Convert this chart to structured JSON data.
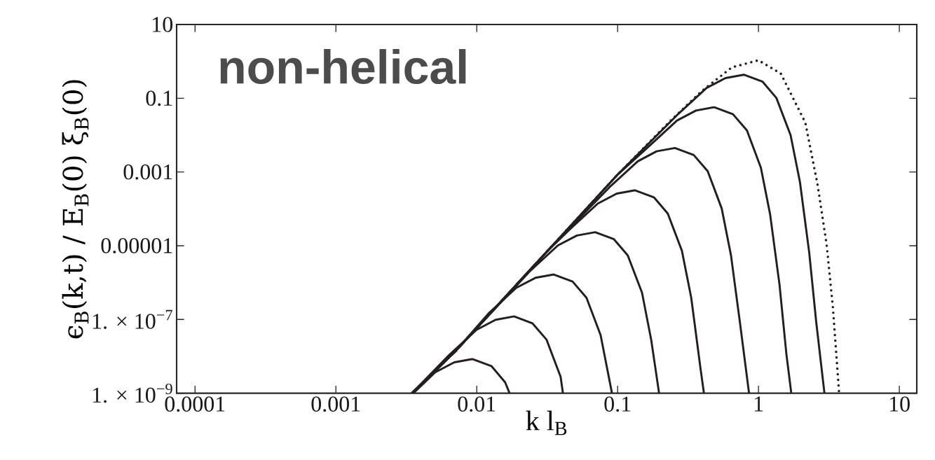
{
  "chart_data": {
    "type": "line",
    "log": "xy",
    "xlabel": "k l$_{B}$",
    "ylabel": "ϵ$_{B}$(k,t) / E$_{B}$(0) ξ$_{B}$(0)",
    "annotations": [
      "**non-helical**"
    ],
    "xlim": [
      7.4e-05,
      13.3
    ],
    "ylim": [
      1e-09,
      10
    ],
    "xticks": [
      {
        "value": 0.0001,
        "label": "0.0001"
      },
      {
        "value": 0.001,
        "label": "0.001"
      },
      {
        "value": 0.01,
        "label": "0.01"
      },
      {
        "value": 0.1,
        "label": "0.1"
      },
      1,
      10
    ],
    "yticks": [
      {
        "value": 1e-09,
        "label": "1. × 10$^{−9}$"
      },
      {
        "value": 1e-07,
        "label": "1. × 10$^{−7}$"
      },
      {
        "value": 1e-05,
        "label": "0.00001"
      },
      {
        "value": 0.001,
        "label": "0.001"
      },
      {
        "value": 0.1,
        "label": "0.1"
      },
      10
    ],
    "series": [
      {
        "color": "#231f20",
        "x": [
          0.00347,
          0.0071,
          0.1,
          0.27,
          0.428,
          0.583,
          0.787,
          1.07,
          1.34,
          1.69,
          1.97,
          2.29,
          2.57,
          2.94
        ],
        "values": [
          1e-09,
          1.41e-08,
          0.00085,
          0.0378,
          0.19,
          0.353,
          0.435,
          0.281,
          0.102,
          0.00996,
          0.000535,
          6.7e-06,
          8.5e-08,
          1e-09
        ]
      },
      {
        "color": "#231f20",
        "x": [
          0.00347,
          0.0071,
          0.1,
          0.167,
          0.264,
          0.36,
          0.485,
          0.659,
          0.828,
          1.04,
          1.21,
          1.41,
          1.58,
          1.71
        ],
        "values": [
          1e-09,
          1.41e-08,
          0.00085,
          0.00498,
          0.0249,
          0.0465,
          0.0571,
          0.0369,
          0.0134,
          0.00131,
          7.03e-05,
          8.85e-07,
          1.11e-08,
          1e-09
        ]
      },
      {
        "color": "#231f20",
        "x": [
          0.00347,
          0.0071,
          0.0316,
          0.0877,
          0.139,
          0.189,
          0.255,
          0.347,
          0.436,
          0.548,
          0.638,
          0.743,
          0.857
        ],
        "values": [
          1e-09,
          1.41e-08,
          7.08e-06,
          0.00039,
          0.00195,
          0.00364,
          0.00448,
          0.00289,
          0.00105,
          0.000103,
          5.51e-06,
          6.93e-08,
          1e-09
        ]
      },
      {
        "color": "#231f20",
        "x": [
          0.00347,
          0.0071,
          0.0316,
          0.0457,
          0.0723,
          0.0986,
          0.133,
          0.181,
          0.227,
          0.286,
          0.333,
          0.387,
          0.41
        ],
        "values": [
          1e-09,
          1.41e-08,
          7.08e-06,
          2.78e-05,
          0.000139,
          0.000259,
          0.000319,
          0.000206,
          7.48e-05,
          7.31e-06,
          3.93e-07,
          4.94e-09,
          1e-09
        ]
      },
      {
        "color": "#231f20",
        "x": [
          0.00347,
          0.0071,
          0.0238,
          0.0377,
          0.0514,
          0.0693,
          0.0942,
          0.118,
          0.149,
          0.173,
          0.197
        ],
        "values": [
          1e-09,
          1.41e-08,
          2.03e-06,
          1.02e-05,
          1.89e-05,
          2.33e-05,
          1.5e-05,
          5.46e-06,
          5.33e-07,
          2.86e-08,
          1e-09
        ]
      },
      {
        "color": "#231f20",
        "x": [
          0.00347,
          0.0071,
          0.0121,
          0.0191,
          0.0261,
          0.0352,
          0.0479,
          0.0601,
          0.0757,
          0.0912
        ],
        "values": [
          1e-09,
          1.41e-08,
          1.44e-07,
          7.23e-07,
          1.35e-06,
          1.66e-06,
          1.07e-06,
          3.88e-07,
          3.79e-08,
          1e-09
        ]
      },
      {
        "color": "#231f20",
        "x": [
          0.00347,
          0.00631,
          0.00998,
          0.0136,
          0.0184,
          0.0249,
          0.0313,
          0.0394,
          0.0409
        ],
        "values": [
          1e-09,
          1.05e-08,
          5.27e-08,
          9.82e-08,
          1.21e-07,
          7.8e-08,
          2.83e-08,
          2.77e-09,
          1e-09
        ]
      },
      {
        "color": "#231f20",
        "x": [
          0.00355,
          0.00507,
          0.00692,
          0.00933,
          0.0127,
          0.0159,
          0.0171
        ],
        "values": [
          1e-09,
          3.69e-09,
          6.87e-09,
          8.45e-09,
          5.46e-09,
          1.98e-09,
          1e-09
        ]
      },
      {
        "color": "#231f20",
        "line_style": "dotted",
        "x": [
          0.00347,
          0.0071,
          0.0316,
          0.1,
          0.236,
          0.391,
          0.646,
          1.0,
          1.44,
          2.15,
          2.62,
          3.05,
          3.37,
          3.73
        ],
        "values": [
          1e-09,
          1.41e-08,
          7.08e-06,
          0.00085,
          0.024,
          0.15,
          0.687,
          1.07,
          0.468,
          0.0219,
          0.000479,
          1.05e-05,
          2.29e-07,
          1.12e-09
        ]
      }
    ]
  }
}
